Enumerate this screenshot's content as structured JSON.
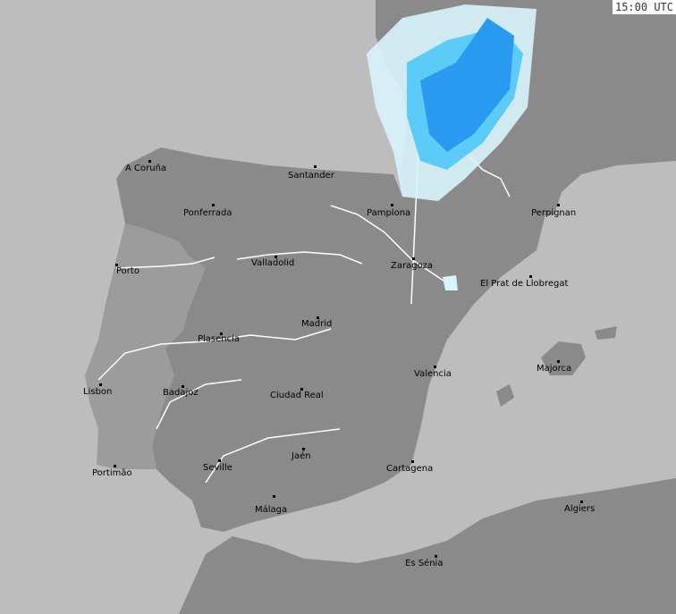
{
  "timestamp": "15:00 UTC",
  "colors": {
    "sea": "#bdbdbd",
    "land": "#8a8a8a",
    "portugal": "#9c9c9c",
    "precip_light": "#d8f4fc",
    "precip_mid": "#5ccbf7",
    "precip_heavy": "#2a9af0"
  },
  "cities": [
    {
      "name": "A Coruña"
    },
    {
      "name": "Santander"
    },
    {
      "name": "Ponferrada"
    },
    {
      "name": "Pamplona"
    },
    {
      "name": "Perpignan"
    },
    {
      "name": "Porto"
    },
    {
      "name": "Valladolid"
    },
    {
      "name": "Zaragoza"
    },
    {
      "name": "El Prat de Llobregat"
    },
    {
      "name": "Madrid"
    },
    {
      "name": "Plasencia"
    },
    {
      "name": "Majorca"
    },
    {
      "name": "Valencia"
    },
    {
      "name": "Lisbon"
    },
    {
      "name": "Badajoz"
    },
    {
      "name": "Ciudad Real"
    },
    {
      "name": "Jaén"
    },
    {
      "name": "Seville"
    },
    {
      "name": "Portimão"
    },
    {
      "name": "Cartagena"
    },
    {
      "name": "Málaga"
    },
    {
      "name": "Algiers"
    },
    {
      "name": "Es Sénia"
    }
  ]
}
